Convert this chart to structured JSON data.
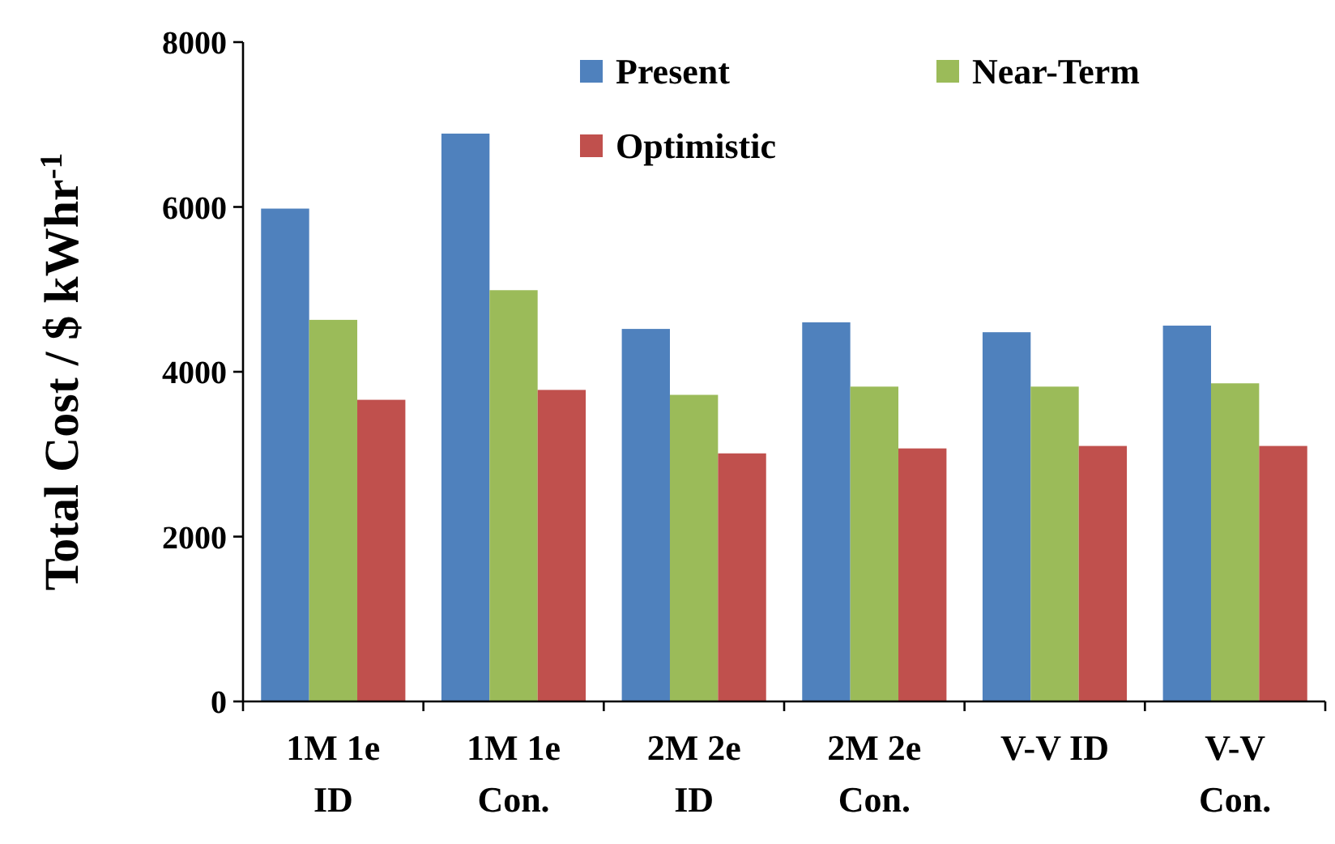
{
  "chart_data": {
    "type": "bar",
    "ylabel": "Total Cost / $ kWhr$^{-1}$",
    "categories": [
      "1M 1e\nID",
      "1M 1e\nCon.",
      "2M 2e\nID",
      "2M 2e\nCon.",
      "V-V ID",
      "V-V\nCon."
    ],
    "series": [
      {
        "name": "Present",
        "color": "#4f81bd",
        "values": [
          5980,
          6890,
          4520,
          4600,
          4480,
          4560
        ]
      },
      {
        "name": "Near-Term",
        "color": "#9bbb59",
        "values": [
          4630,
          4990,
          3720,
          3820,
          3820,
          3860
        ]
      },
      {
        "name": "Optimistic",
        "color": "#c0504d",
        "values": [
          3660,
          3780,
          3010,
          3070,
          3100,
          3100
        ]
      }
    ],
    "ylim": [
      0,
      8000
    ],
    "yticks": [
      0,
      2000,
      4000,
      6000,
      8000
    ],
    "grid": false,
    "legend": "top right"
  }
}
